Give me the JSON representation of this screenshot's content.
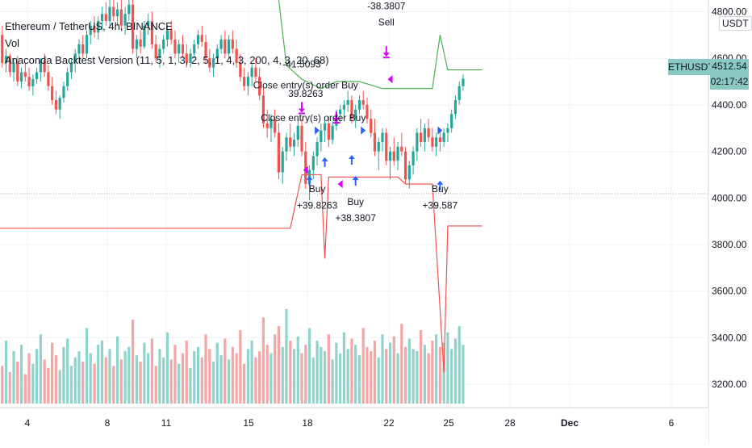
{
  "header": {
    "symbol_line": "Ethereum / TetherUS, 4h, BINANCE",
    "vol_label": "Vol",
    "strategy_line": "Anaconda Backtest Version (11, 5, 1, 3, 2, 5, 1, 4, 3, 200, 4, 3, 20, 68)"
  },
  "price_scale": {
    "currency": "USDT",
    "ticks": [
      "4800.00",
      "4600.00",
      "4400.00",
      "4200.00",
      "4000.00",
      "3800.00",
      "3600.00",
      "3400.00",
      "3200.00"
    ]
  },
  "last_price": {
    "symbol": "ETHUSDT",
    "price": "4512.54",
    "countdown": "02:17:42",
    "color": "#89c9c1"
  },
  "date_axis": {
    "labels": [
      "4",
      "8",
      "11",
      "15",
      "18",
      "22",
      "25",
      "28",
      "Dec",
      "6"
    ]
  },
  "colors": {
    "up": "#26a69a",
    "down": "#ef5350",
    "vol_up": "#8fd3cc",
    "vol_down": "#f4a6a5",
    "stop_line": "#ef5350",
    "target_line": "#4caf50",
    "entry_arrow": "#2962ff",
    "exit_arrow": "#d500f9"
  },
  "chart_data": {
    "type": "candlestick",
    "ylim": [
      3100,
      4850
    ],
    "grid": true,
    "candles": [
      {
        "i": 0,
        "o": 4680,
        "h": 4720,
        "l": 4640,
        "c": 4700
      },
      {
        "i": 1,
        "o": 4700,
        "h": 4740,
        "l": 4560,
        "c": 4580
      },
      {
        "i": 2,
        "o": 4580,
        "h": 4640,
        "l": 4540,
        "c": 4610
      },
      {
        "i": 3,
        "o": 4610,
        "h": 4620,
        "l": 4520,
        "c": 4540
      },
      {
        "i": 4,
        "o": 4540,
        "h": 4600,
        "l": 4500,
        "c": 4580
      },
      {
        "i": 5,
        "o": 4580,
        "h": 4610,
        "l": 4480,
        "c": 4500
      },
      {
        "i": 6,
        "o": 4500,
        "h": 4560,
        "l": 4470,
        "c": 4540
      },
      {
        "i": 7,
        "o": 4540,
        "h": 4580,
        "l": 4500,
        "c": 4520
      },
      {
        "i": 8,
        "o": 4520,
        "h": 4560,
        "l": 4460,
        "c": 4480
      },
      {
        "i": 9,
        "o": 4480,
        "h": 4530,
        "l": 4440,
        "c": 4510
      },
      {
        "i": 10,
        "o": 4510,
        "h": 4560,
        "l": 4490,
        "c": 4540
      },
      {
        "i": 11,
        "o": 4540,
        "h": 4600,
        "l": 4500,
        "c": 4590
      },
      {
        "i": 12,
        "o": 4590,
        "h": 4620,
        "l": 4520,
        "c": 4540
      },
      {
        "i": 13,
        "o": 4540,
        "h": 4570,
        "l": 4460,
        "c": 4480
      },
      {
        "i": 14,
        "o": 4480,
        "h": 4520,
        "l": 4400,
        "c": 4420
      },
      {
        "i": 15,
        "o": 4420,
        "h": 4460,
        "l": 4360,
        "c": 4380
      },
      {
        "i": 16,
        "o": 4380,
        "h": 4440,
        "l": 4340,
        "c": 4430
      },
      {
        "i": 17,
        "o": 4430,
        "h": 4500,
        "l": 4410,
        "c": 4480
      },
      {
        "i": 18,
        "o": 4480,
        "h": 4560,
        "l": 4460,
        "c": 4540
      },
      {
        "i": 19,
        "o": 4540,
        "h": 4600,
        "l": 4510,
        "c": 4580
      },
      {
        "i": 20,
        "o": 4580,
        "h": 4640,
        "l": 4540,
        "c": 4620
      },
      {
        "i": 21,
        "o": 4620,
        "h": 4680,
        "l": 4580,
        "c": 4660
      },
      {
        "i": 22,
        "o": 4660,
        "h": 4700,
        "l": 4600,
        "c": 4620
      },
      {
        "i": 23,
        "o": 4620,
        "h": 4720,
        "l": 4600,
        "c": 4700
      },
      {
        "i": 24,
        "o": 4700,
        "h": 4760,
        "l": 4660,
        "c": 4740
      },
      {
        "i": 25,
        "o": 4740,
        "h": 4780,
        "l": 4690,
        "c": 4710
      },
      {
        "i": 26,
        "o": 4710,
        "h": 4780,
        "l": 4680,
        "c": 4760
      },
      {
        "i": 27,
        "o": 4760,
        "h": 4820,
        "l": 4720,
        "c": 4790
      },
      {
        "i": 28,
        "o": 4790,
        "h": 4840,
        "l": 4740,
        "c": 4760
      },
      {
        "i": 29,
        "o": 4760,
        "h": 4850,
        "l": 4740,
        "c": 4820
      },
      {
        "i": 30,
        "o": 4820,
        "h": 4850,
        "l": 4760,
        "c": 4780
      },
      {
        "i": 31,
        "o": 4780,
        "h": 4840,
        "l": 4740,
        "c": 4810
      },
      {
        "i": 32,
        "o": 4810,
        "h": 4850,
        "l": 4720,
        "c": 4740
      },
      {
        "i": 33,
        "o": 4740,
        "h": 4820,
        "l": 4700,
        "c": 4790
      },
      {
        "i": 34,
        "o": 4790,
        "h": 4850,
        "l": 4760,
        "c": 4830
      },
      {
        "i": 35,
        "o": 4830,
        "h": 4850,
        "l": 4620,
        "c": 4640
      },
      {
        "i": 36,
        "o": 4640,
        "h": 4700,
        "l": 4600,
        "c": 4680
      },
      {
        "i": 37,
        "o": 4680,
        "h": 4720,
        "l": 4620,
        "c": 4650
      },
      {
        "i": 38,
        "o": 4650,
        "h": 4760,
        "l": 4640,
        "c": 4740
      },
      {
        "i": 39,
        "o": 4740,
        "h": 4790,
        "l": 4700,
        "c": 4760
      },
      {
        "i": 40,
        "o": 4760,
        "h": 4800,
        "l": 4640,
        "c": 4660
      },
      {
        "i": 41,
        "o": 4660,
        "h": 4700,
        "l": 4580,
        "c": 4600
      },
      {
        "i": 42,
        "o": 4600,
        "h": 4660,
        "l": 4560,
        "c": 4640
      },
      {
        "i": 43,
        "o": 4640,
        "h": 4700,
        "l": 4620,
        "c": 4680
      },
      {
        "i": 44,
        "o": 4680,
        "h": 4740,
        "l": 4650,
        "c": 4720
      },
      {
        "i": 45,
        "o": 4720,
        "h": 4760,
        "l": 4660,
        "c": 4680
      },
      {
        "i": 46,
        "o": 4680,
        "h": 4720,
        "l": 4600,
        "c": 4620
      },
      {
        "i": 47,
        "o": 4620,
        "h": 4680,
        "l": 4580,
        "c": 4660
      },
      {
        "i": 48,
        "o": 4660,
        "h": 4700,
        "l": 4600,
        "c": 4620
      },
      {
        "i": 49,
        "o": 4620,
        "h": 4660,
        "l": 4560,
        "c": 4580
      },
      {
        "i": 50,
        "o": 4580,
        "h": 4640,
        "l": 4560,
        "c": 4620
      },
      {
        "i": 51,
        "o": 4620,
        "h": 4680,
        "l": 4600,
        "c": 4660
      },
      {
        "i": 52,
        "o": 4660,
        "h": 4720,
        "l": 4640,
        "c": 4700
      },
      {
        "i": 53,
        "o": 4700,
        "h": 4740,
        "l": 4650,
        "c": 4670
      },
      {
        "i": 54,
        "o": 4670,
        "h": 4700,
        "l": 4580,
        "c": 4600
      },
      {
        "i": 55,
        "o": 4600,
        "h": 4640,
        "l": 4540,
        "c": 4560
      },
      {
        "i": 56,
        "o": 4560,
        "h": 4620,
        "l": 4520,
        "c": 4600
      },
      {
        "i": 57,
        "o": 4600,
        "h": 4660,
        "l": 4580,
        "c": 4640
      },
      {
        "i": 58,
        "o": 4640,
        "h": 4700,
        "l": 4620,
        "c": 4680
      },
      {
        "i": 59,
        "o": 4680,
        "h": 4720,
        "l": 4600,
        "c": 4620
      },
      {
        "i": 60,
        "o": 4620,
        "h": 4700,
        "l": 4600,
        "c": 4680
      },
      {
        "i": 61,
        "o": 4680,
        "h": 4720,
        "l": 4620,
        "c": 4640
      },
      {
        "i": 62,
        "o": 4640,
        "h": 4680,
        "l": 4560,
        "c": 4580
      },
      {
        "i": 63,
        "o": 4580,
        "h": 4620,
        "l": 4500,
        "c": 4520
      },
      {
        "i": 64,
        "o": 4520,
        "h": 4560,
        "l": 4460,
        "c": 4480
      },
      {
        "i": 65,
        "o": 4480,
        "h": 4540,
        "l": 4440,
        "c": 4520
      },
      {
        "i": 66,
        "o": 4520,
        "h": 4580,
        "l": 4480,
        "c": 4560
      },
      {
        "i": 67,
        "o": 4560,
        "h": 4600,
        "l": 4500,
        "c": 4520
      },
      {
        "i": 68,
        "o": 4520,
        "h": 4560,
        "l": 4420,
        "c": 4440
      },
      {
        "i": 69,
        "o": 4440,
        "h": 4480,
        "l": 4300,
        "c": 4320
      },
      {
        "i": 70,
        "o": 4320,
        "h": 4380,
        "l": 4260,
        "c": 4300
      },
      {
        "i": 71,
        "o": 4300,
        "h": 4360,
        "l": 4240,
        "c": 4340
      },
      {
        "i": 72,
        "o": 4340,
        "h": 4380,
        "l": 4260,
        "c": 4280
      },
      {
        "i": 73,
        "o": 4280,
        "h": 4320,
        "l": 4080,
        "c": 4110
      },
      {
        "i": 74,
        "o": 4110,
        "h": 4220,
        "l": 4060,
        "c": 4200
      },
      {
        "i": 75,
        "o": 4200,
        "h": 4280,
        "l": 4160,
        "c": 4260
      },
      {
        "i": 76,
        "o": 4260,
        "h": 4320,
        "l": 4200,
        "c": 4220
      },
      {
        "i": 77,
        "o": 4220,
        "h": 4280,
        "l": 4180,
        "c": 4250
      },
      {
        "i": 78,
        "o": 4250,
        "h": 4340,
        "l": 4220,
        "c": 4310
      },
      {
        "i": 79,
        "o": 4310,
        "h": 4340,
        "l": 4180,
        "c": 4200
      },
      {
        "i": 80,
        "o": 4200,
        "h": 4240,
        "l": 4040,
        "c": 4060
      },
      {
        "i": 81,
        "o": 4060,
        "h": 4140,
        "l": 3990,
        "c": 4120
      },
      {
        "i": 82,
        "o": 4120,
        "h": 4200,
        "l": 4080,
        "c": 4180
      },
      {
        "i": 83,
        "o": 4180,
        "h": 4260,
        "l": 4140,
        "c": 4240
      },
      {
        "i": 84,
        "o": 4240,
        "h": 4320,
        "l": 4200,
        "c": 4290
      },
      {
        "i": 85,
        "o": 4290,
        "h": 4340,
        "l": 4240,
        "c": 4320
      },
      {
        "i": 86,
        "o": 4320,
        "h": 4350,
        "l": 4220,
        "c": 4250
      },
      {
        "i": 87,
        "o": 4250,
        "h": 4330,
        "l": 4230,
        "c": 4310
      },
      {
        "i": 88,
        "o": 4310,
        "h": 4380,
        "l": 4290,
        "c": 4360
      },
      {
        "i": 89,
        "o": 4360,
        "h": 4400,
        "l": 4320,
        "c": 4380
      },
      {
        "i": 90,
        "o": 4380,
        "h": 4420,
        "l": 4340,
        "c": 4400
      },
      {
        "i": 91,
        "o": 4400,
        "h": 4460,
        "l": 4370,
        "c": 4420
      },
      {
        "i": 92,
        "o": 4420,
        "h": 4440,
        "l": 4320,
        "c": 4340
      },
      {
        "i": 93,
        "o": 4340,
        "h": 4400,
        "l": 4300,
        "c": 4380
      },
      {
        "i": 94,
        "o": 4380,
        "h": 4440,
        "l": 4360,
        "c": 4420
      },
      {
        "i": 95,
        "o": 4420,
        "h": 4460,
        "l": 4380,
        "c": 4400
      },
      {
        "i": 96,
        "o": 4400,
        "h": 4430,
        "l": 4320,
        "c": 4340
      },
      {
        "i": 97,
        "o": 4340,
        "h": 4380,
        "l": 4260,
        "c": 4280
      },
      {
        "i": 98,
        "o": 4280,
        "h": 4340,
        "l": 4180,
        "c": 4200
      },
      {
        "i": 99,
        "o": 4200,
        "h": 4260,
        "l": 4120,
        "c": 4240
      },
      {
        "i": 100,
        "o": 4240,
        "h": 4300,
        "l": 4200,
        "c": 4280
      },
      {
        "i": 101,
        "o": 4280,
        "h": 4300,
        "l": 4140,
        "c": 4160
      },
      {
        "i": 102,
        "o": 4160,
        "h": 4220,
        "l": 4080,
        "c": 4200
      },
      {
        "i": 103,
        "o": 4200,
        "h": 4260,
        "l": 4140,
        "c": 4160
      },
      {
        "i": 104,
        "o": 4160,
        "h": 4240,
        "l": 4120,
        "c": 4220
      },
      {
        "i": 105,
        "o": 4220,
        "h": 4280,
        "l": 4180,
        "c": 4200
      },
      {
        "i": 106,
        "o": 4200,
        "h": 4220,
        "l": 4060,
        "c": 4080
      },
      {
        "i": 107,
        "o": 4080,
        "h": 4160,
        "l": 4040,
        "c": 4140
      },
      {
        "i": 108,
        "o": 4140,
        "h": 4220,
        "l": 4100,
        "c": 4200
      },
      {
        "i": 109,
        "o": 4200,
        "h": 4300,
        "l": 4160,
        "c": 4280
      },
      {
        "i": 110,
        "o": 4280,
        "h": 4340,
        "l": 4220,
        "c": 4240
      },
      {
        "i": 111,
        "o": 4240,
        "h": 4320,
        "l": 4200,
        "c": 4300
      },
      {
        "i": 112,
        "o": 4300,
        "h": 4340,
        "l": 4240,
        "c": 4260
      },
      {
        "i": 113,
        "o": 4260,
        "h": 4300,
        "l": 4200,
        "c": 4220
      },
      {
        "i": 114,
        "o": 4220,
        "h": 4280,
        "l": 4180,
        "c": 4260
      },
      {
        "i": 115,
        "o": 4260,
        "h": 4300,
        "l": 4200,
        "c": 4240
      },
      {
        "i": 116,
        "o": 4240,
        "h": 4300,
        "l": 4220,
        "c": 4280
      },
      {
        "i": 117,
        "o": 4280,
        "h": 4320,
        "l": 4240,
        "c": 4300
      },
      {
        "i": 118,
        "o": 4300,
        "h": 4380,
        "l": 4280,
        "c": 4360
      },
      {
        "i": 119,
        "o": 4360,
        "h": 4440,
        "l": 4340,
        "c": 4420
      },
      {
        "i": 120,
        "o": 4420,
        "h": 4500,
        "l": 4400,
        "c": 4480
      },
      {
        "i": 121,
        "o": 4480,
        "h": 4530,
        "l": 4460,
        "c": 4512
      }
    ],
    "volume": [
      22,
      18,
      30,
      15,
      25,
      20,
      28,
      14,
      24,
      19,
      26,
      33,
      21,
      17,
      29,
      23,
      16,
      27,
      31,
      18,
      22,
      25,
      20,
      36,
      24,
      19,
      28,
      30,
      22,
      26,
      18,
      32,
      21,
      25,
      27,
      40,
      23,
      20,
      29,
      24,
      31,
      18,
      26,
      22,
      34,
      21,
      28,
      19,
      24,
      30,
      17,
      25,
      27,
      22,
      33,
      26,
      20,
      29,
      23,
      31,
      21,
      27,
      24,
      35,
      19,
      26,
      30,
      22,
      25,
      41,
      28,
      24,
      33,
      37,
      27,
      45,
      30,
      26,
      32,
      24,
      28,
      36,
      22,
      30,
      27,
      25,
      33,
      21,
      29,
      24,
      34,
      26,
      31,
      28,
      23,
      36,
      27,
      25,
      30,
      22,
      33,
      26,
      29,
      32,
      24,
      38,
      27,
      31,
      26,
      25,
      35,
      28,
      24,
      30,
      33,
      27,
      29,
      34,
      26,
      31,
      37,
      28
    ]
  },
  "strategy": {
    "stop_line": [
      [
        0,
        3870
      ],
      [
        76,
        3870
      ],
      [
        79,
        4100
      ],
      [
        84,
        4100
      ],
      [
        85,
        3740
      ],
      [
        86,
        4090
      ],
      [
        104,
        4090
      ],
      [
        106,
        4060
      ],
      [
        113,
        4060
      ],
      [
        116,
        3250
      ],
      [
        117,
        3880
      ],
      [
        126,
        3880
      ]
    ],
    "target_line": [
      [
        73,
        4850
      ],
      [
        75,
        4570
      ],
      [
        79,
        4510
      ],
      [
        84,
        4470
      ],
      [
        88,
        4500
      ],
      [
        94,
        4500
      ],
      [
        100,
        4470
      ],
      [
        113,
        4470
      ],
      [
        115,
        4700
      ],
      [
        117,
        4550
      ],
      [
        126,
        4550
      ]
    ],
    "annotations": [
      {
        "text": "-41.5093",
        "x": 79,
        "y": 4560
      },
      {
        "text": "Close entry(s) order Buy",
        "x": 80,
        "y": 4470
      },
      {
        "text": "39.8263",
        "x": 80,
        "y": 4435
      },
      {
        "text": "Close entry(s) order Buy",
        "x": 82,
        "y": 4330
      },
      {
        "text": "-38.3807",
        "x": 101,
        "y": 4810
      },
      {
        "text": "Sell",
        "x": 101,
        "y": 4740
      },
      {
        "text": "Buy",
        "x": 83,
        "y": 4025
      },
      {
        "text": "+39.8263",
        "x": 83,
        "y": 3955
      },
      {
        "text": "Buy",
        "x": 93,
        "y": 3970
      },
      {
        "text": "+38.3807",
        "x": 93,
        "y": 3900
      },
      {
        "text": "Buy",
        "x": 115,
        "y": 4025
      },
      {
        "text": "+39.587",
        "x": 115,
        "y": 3955
      }
    ],
    "entries": [
      {
        "x": 81,
        "y": 4060
      },
      {
        "x": 85,
        "y": 4140
      },
      {
        "x": 92,
        "y": 4150
      },
      {
        "x": 93,
        "y": 4060
      },
      {
        "x": 115,
        "y": 4040
      }
    ],
    "exits_down": [
      {
        "x": 79,
        "y": 4370
      },
      {
        "x": 88,
        "y": 4330
      },
      {
        "x": 101,
        "y": 4610
      }
    ],
    "markers_left": [
      {
        "x": 80,
        "y": 4120
      },
      {
        "x": 89,
        "y": 4060
      },
      {
        "x": 102,
        "y": 4510
      }
    ],
    "markers_right": [
      {
        "x": 83,
        "y": 4290
      },
      {
        "x": 95,
        "y": 4290
      },
      {
        "x": 115,
        "y": 4290
      }
    ]
  }
}
